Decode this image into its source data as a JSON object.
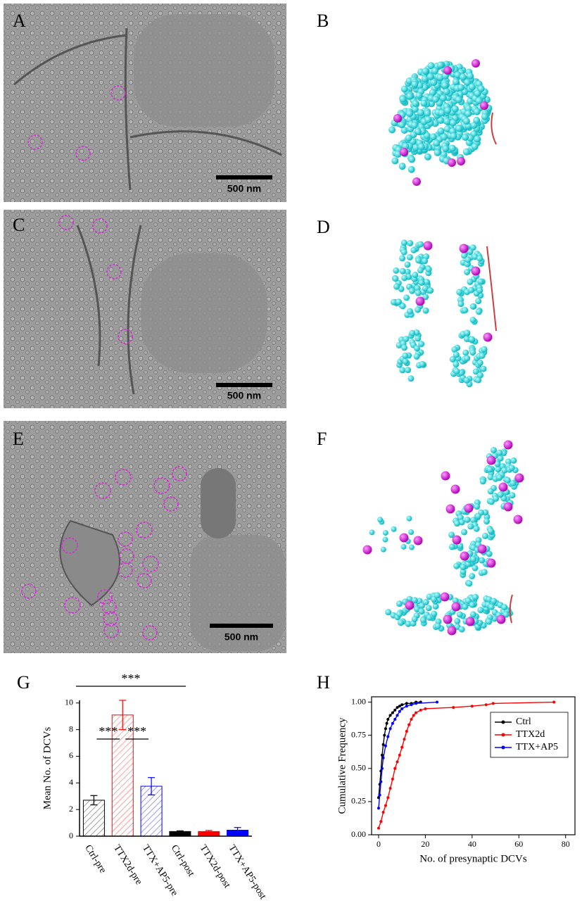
{
  "panel_labels": [
    "A",
    "B",
    "C",
    "D",
    "E",
    "F",
    "G",
    "H"
  ],
  "scale_bar_labels": [
    "500 nm",
    "500 nm",
    "500 nm"
  ],
  "chart_data": [
    {
      "type": "bar",
      "y_label": "Mean No. of DCVs",
      "categories": [
        "Ctrl-pre",
        "TTX2d-pre",
        "TTX+AP5-pre",
        "Ctrl-post",
        "TTX2d-post",
        "TTX+AP5-post"
      ],
      "values": [
        2.7,
        9.1,
        3.75,
        0.35,
        0.35,
        0.45
      ],
      "errors": [
        0.35,
        1.1,
        0.65,
        0.05,
        0.08,
        0.2
      ],
      "colors": [
        "#000000",
        "#ff0000",
        "#0000ff",
        "#000000",
        "#ff0000",
        "#0000ff"
      ],
      "hatched": [
        true,
        true,
        true,
        false,
        false,
        false
      ],
      "ylim": [
        0,
        10.2
      ],
      "yticks": [
        0,
        2,
        4,
        6,
        8,
        10
      ],
      "annotations": [
        {
          "text": "***",
          "from": "Ctrl-pre",
          "to": "TTX2d-pre"
        },
        {
          "text": "***",
          "from": "TTX2d-pre",
          "to": "TTX+AP5-pre"
        },
        {
          "text": "***",
          "from": "Ctrl-pre",
          "to": "Ctrl-post"
        }
      ]
    },
    {
      "type": "line",
      "x_label": "No. of presynaptic DCVs",
      "y_label": "Cumulative Frequency",
      "legend": "upper right",
      "xlim": [
        -3,
        84
      ],
      "ylim": [
        0,
        1.04
      ],
      "xticks": [
        0,
        20,
        40,
        60,
        80
      ],
      "yticks": [
        {
          "value": 0,
          "label": "0.00"
        },
        {
          "value": 0.25,
          "label": "0.25"
        },
        {
          "value": 0.5,
          "label": "0.50"
        },
        {
          "value": 0.75,
          "label": "0.75"
        },
        {
          "value": 1,
          "label": "1.00"
        }
      ],
      "series": [
        {
          "name": "Ctrl",
          "color": "#000000",
          "x": [
            0,
            0.5,
            1,
            1.5,
            2,
            2.5,
            3,
            3.5,
            4,
            5,
            6,
            7,
            8,
            9,
            10,
            12,
            14,
            16,
            18
          ],
          "values": [
            0.28,
            0.38,
            0.48,
            0.6,
            0.68,
            0.75,
            0.8,
            0.84,
            0.87,
            0.9,
            0.92,
            0.94,
            0.96,
            0.97,
            0.98,
            0.99,
            0.99,
            1.0,
            1.0
          ]
        },
        {
          "name": "TTX2d",
          "color": "#ff0000",
          "x": [
            0,
            1,
            2,
            3,
            4,
            5,
            6,
            7,
            8,
            9,
            10,
            11,
            12,
            13,
            14,
            15,
            16,
            18,
            20,
            32,
            40,
            46,
            49,
            75
          ],
          "values": [
            0.05,
            0.1,
            0.17,
            0.22,
            0.28,
            0.35,
            0.42,
            0.5,
            0.55,
            0.6,
            0.66,
            0.72,
            0.78,
            0.83,
            0.87,
            0.9,
            0.92,
            0.94,
            0.95,
            0.96,
            0.97,
            0.98,
            0.99,
            1.0
          ]
        },
        {
          "name": "TTX+AP5",
          "color": "#0000ff",
          "x": [
            0,
            0.5,
            1,
            1.5,
            2,
            3,
            4,
            5,
            6,
            7,
            8,
            9,
            10,
            12,
            14,
            16,
            25
          ],
          "values": [
            0.2,
            0.3,
            0.4,
            0.5,
            0.58,
            0.67,
            0.74,
            0.8,
            0.84,
            0.87,
            0.9,
            0.93,
            0.95,
            0.97,
            0.98,
            0.99,
            1.0
          ]
        }
      ]
    }
  ]
}
